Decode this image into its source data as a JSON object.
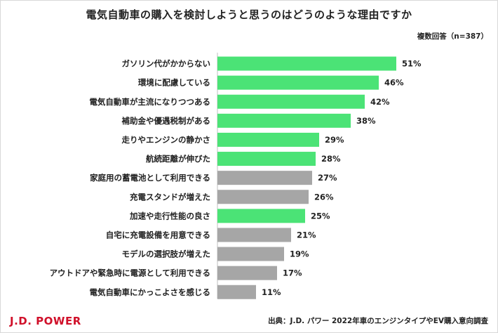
{
  "chart_data": {
    "type": "bar",
    "orientation": "horizontal",
    "title": "電気自動車の購入を検討しようと思うのはどうのような理由ですか",
    "note": "複数回答（n=387）",
    "categories": [
      "ガソリン代がかからない",
      "環境に配慮している",
      "電気自動車が主流になりつつある",
      "補助金や優遇税制がある",
      "走りやエンジンの静かさ",
      "航続距離が伸びた",
      "家庭用の蓄電池として利用できる",
      "充電スタンドが増えた",
      "加速や走行性能の良さ",
      "自宅に充電設備を用意できる",
      "モデルの選択肢が増えた",
      "アウトドアや緊急時に電源として利用できる",
      "電気自動車にかっこよさを感じる"
    ],
    "values": [
      51,
      46,
      42,
      38,
      29,
      28,
      27,
      26,
      25,
      21,
      19,
      17,
      11
    ],
    "value_labels": [
      "51%",
      "46%",
      "42%",
      "38%",
      "29%",
      "28%",
      "27%",
      "26%",
      "25%",
      "21%",
      "19%",
      "17%",
      "11%"
    ],
    "highlight": [
      true,
      true,
      true,
      true,
      true,
      true,
      false,
      false,
      true,
      false,
      false,
      false,
      false
    ],
    "colors": {
      "highlight": "#4be376",
      "normal": "#a6a6a6"
    },
    "xlim": [
      0,
      60
    ],
    "xlabel": "",
    "ylabel": ""
  },
  "footer": {
    "brand": "J.D. POWER",
    "source": "出典：J.D. パワー 2022年車のエンジンタイプやEV購入意向調査"
  }
}
